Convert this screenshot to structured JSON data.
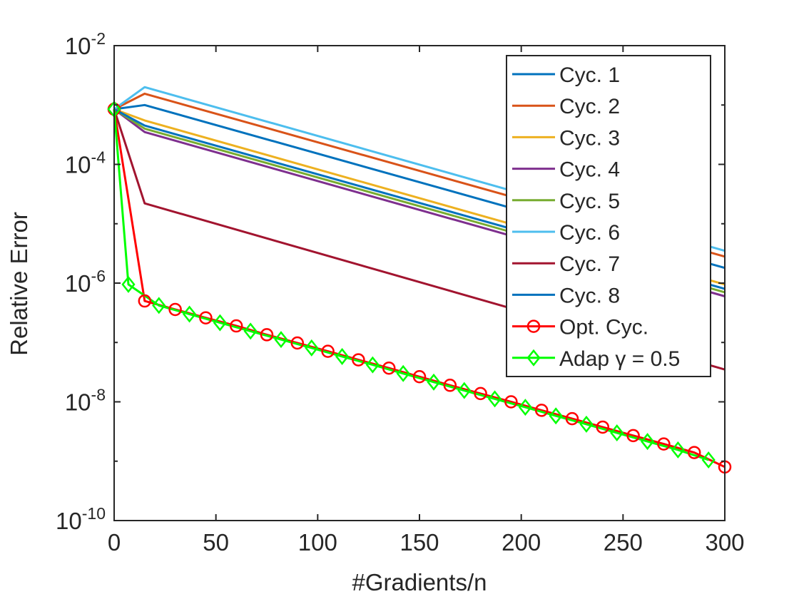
{
  "chart_data": {
    "type": "line",
    "xlabel": "#Gradients/n",
    "ylabel": "Relative Error",
    "yscale": "log",
    "xlim": [
      0,
      300
    ],
    "ylim": [
      1e-10,
      0.01
    ],
    "x_ticks": [
      {
        "value": 0,
        "label": "0"
      },
      {
        "value": 50,
        "label": "50"
      },
      {
        "value": 100,
        "label": "100"
      },
      {
        "value": 150,
        "label": "150"
      },
      {
        "value": 200,
        "label": "200"
      },
      {
        "value": 250,
        "label": "250"
      },
      {
        "value": 300,
        "label": "300"
      }
    ],
    "y_ticks": [
      {
        "value": 0.01,
        "base": "10",
        "exp": "-2"
      },
      {
        "value": 0.0001,
        "base": "10",
        "exp": "-4"
      },
      {
        "value": 1e-06,
        "base": "10",
        "exp": "-6"
      },
      {
        "value": 1e-08,
        "base": "10",
        "exp": "-8"
      },
      {
        "value": 1e-10,
        "base": "10",
        "exp": "-10"
      }
    ],
    "legend_position": "top-right",
    "series": [
      {
        "name": "Cyc. 1",
        "color": "#0072BD",
        "marker": "none",
        "x": [
          0,
          15,
          300
        ],
        "y": [
          0.00085,
          0.001,
          1.8e-06
        ]
      },
      {
        "name": "Cyc. 2",
        "color": "#D95319",
        "marker": "none",
        "x": [
          0,
          15,
          300
        ],
        "y": [
          0.00085,
          0.00155,
          2.8e-06
        ]
      },
      {
        "name": "Cyc. 3",
        "color": "#EDB120",
        "marker": "none",
        "x": [
          0,
          15,
          300
        ],
        "y": [
          0.00085,
          0.00055,
          9.5e-07
        ]
      },
      {
        "name": "Cyc. 4",
        "color": "#7E2F8E",
        "marker": "none",
        "x": [
          0,
          15,
          300
        ],
        "y": [
          0.00085,
          0.00035,
          6e-07
        ]
      },
      {
        "name": "Cyc. 5",
        "color": "#77AC30",
        "marker": "none",
        "x": [
          0,
          15,
          300
        ],
        "y": [
          0.00085,
          0.0004,
          7e-07
        ]
      },
      {
        "name": "Cyc. 6",
        "color": "#4DBEEE",
        "marker": "none",
        "x": [
          0,
          15,
          300
        ],
        "y": [
          0.00085,
          0.002,
          3.5e-06
        ]
      },
      {
        "name": "Cyc. 7",
        "color": "#A2142F",
        "marker": "none",
        "x": [
          0,
          15,
          300
        ],
        "y": [
          0.00085,
          2.2e-05,
          3.5e-08
        ]
      },
      {
        "name": "Cyc. 8",
        "color": "#0072BD",
        "marker": "none",
        "x": [
          0,
          15,
          300
        ],
        "y": [
          0.00085,
          0.00045,
          8e-07
        ]
      },
      {
        "name": "Opt. Cyc.",
        "color": "#FF0000",
        "marker": "circle",
        "x": [
          0,
          15,
          30,
          45,
          60,
          75,
          90,
          105,
          120,
          135,
          150,
          165,
          180,
          195,
          210,
          225,
          240,
          255,
          270,
          285,
          300
        ],
        "y": [
          0.00085,
          5e-07,
          3.6e-07,
          2.6e-07,
          1.9e-07,
          1.35e-07,
          9.8e-08,
          7.1e-08,
          5.1e-08,
          3.7e-08,
          2.65e-08,
          1.9e-08,
          1.38e-08,
          1e-08,
          7.2e-09,
          5.2e-09,
          3.75e-09,
          2.7e-09,
          1.95e-09,
          1.4e-09,
          8e-10
        ]
      },
      {
        "name": "Adap γ = 0.5",
        "color": "#00FF00",
        "marker": "diamond",
        "x": [
          0,
          7,
          22,
          37,
          52,
          67,
          82,
          97,
          112,
          127,
          142,
          157,
          172,
          187,
          202,
          217,
          232,
          247,
          262,
          277,
          292
        ],
        "y": [
          0.00085,
          9.5e-07,
          4.2e-07,
          3e-07,
          2.15e-07,
          1.55e-07,
          1.12e-07,
          8.1e-08,
          5.8e-08,
          4.2e-08,
          3e-08,
          2.15e-08,
          1.55e-08,
          1.12e-08,
          8.1e-09,
          5.8e-09,
          4.2e-09,
          3e-09,
          2.15e-09,
          1.55e-09,
          1.05e-09
        ]
      }
    ]
  }
}
